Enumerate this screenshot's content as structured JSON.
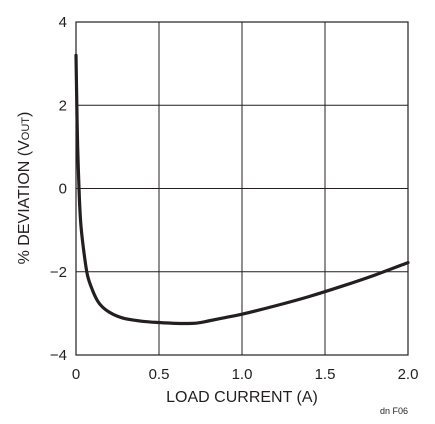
{
  "chart_data": {
    "type": "line",
    "title": "",
    "xlabel": "LOAD CURRENT (A)",
    "ylabel": {
      "prefix": "% DEVIATION (V",
      "subscript": "OUT",
      "suffix": ")"
    },
    "xlim": [
      0,
      2.0
    ],
    "ylim": [
      -4,
      4
    ],
    "x_ticks": [
      0,
      0.5,
      1.0,
      1.5,
      2.0
    ],
    "x_tick_labels": [
      "0",
      "0.5",
      "1.0",
      "1.5",
      "2.0"
    ],
    "y_ticks": [
      4,
      2,
      0,
      -2,
      -4
    ],
    "y_tick_labels": [
      "4",
      "2",
      "0",
      "−2",
      "−4"
    ],
    "grid": true,
    "series": [
      {
        "x": [
          0.0,
          0.005,
          0.01,
          0.02,
          0.03,
          0.05,
          0.07,
          0.1,
          0.13,
          0.16,
          0.2,
          0.25,
          0.3,
          0.4,
          0.5,
          0.6,
          0.7,
          0.75,
          0.8,
          0.9,
          1.0,
          1.2,
          1.4,
          1.6,
          1.8,
          2.0
        ],
        "y": [
          3.2,
          2.0,
          1.0,
          -0.2,
          -0.9,
          -1.6,
          -2.1,
          -2.45,
          -2.7,
          -2.85,
          -2.97,
          -3.07,
          -3.13,
          -3.19,
          -3.22,
          -3.24,
          -3.24,
          -3.22,
          -3.18,
          -3.1,
          -3.02,
          -2.82,
          -2.6,
          -2.35,
          -2.08,
          -1.78
        ]
      }
    ]
  },
  "figure_code": "dn F06"
}
